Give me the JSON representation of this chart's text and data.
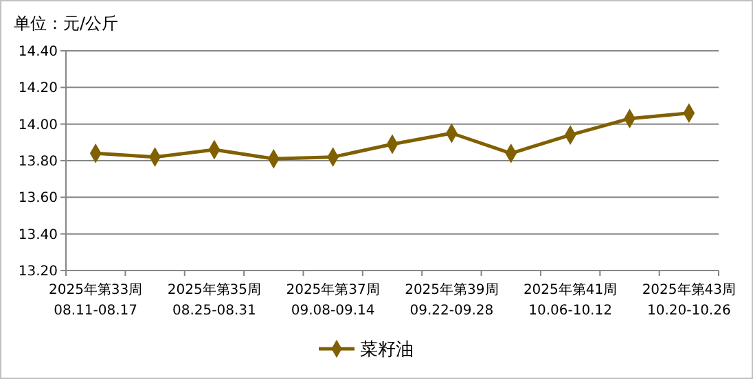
{
  "chart_data": {
    "type": "line",
    "ylabel": "单位：元/公斤",
    "categories": [
      "2025年第33周\n08.11-08.17",
      null,
      "2025年第35周\n08.25-08.31",
      null,
      "2025年第37周\n09.08-09.14",
      null,
      "2025年第39周\n09.22-09.28",
      null,
      "2025年第41周\n10.06-10.12",
      null,
      "2025年第43周\n10.20-10.26"
    ],
    "series": [
      {
        "name": "菜籽油",
        "color": "#806000",
        "values": [
          13.84,
          13.82,
          13.86,
          13.81,
          13.82,
          13.89,
          13.95,
          13.84,
          13.94,
          14.03,
          14.06
        ]
      }
    ],
    "ylim": [
      13.2,
      14.4
    ],
    "yticks": [
      {
        "value": 13.2,
        "label": "13.20"
      },
      {
        "value": 13.4,
        "label": "13.40"
      },
      {
        "value": 13.6,
        "label": "13.60"
      },
      {
        "value": 13.8,
        "label": "13.80"
      },
      {
        "value": 14.0,
        "label": "14.00"
      },
      {
        "value": 14.2,
        "label": "14.20"
      },
      {
        "value": 14.4,
        "label": "14.40"
      }
    ],
    "grid": "y",
    "legend": "bottom",
    "marker": "diamond",
    "line_style": "solid"
  }
}
